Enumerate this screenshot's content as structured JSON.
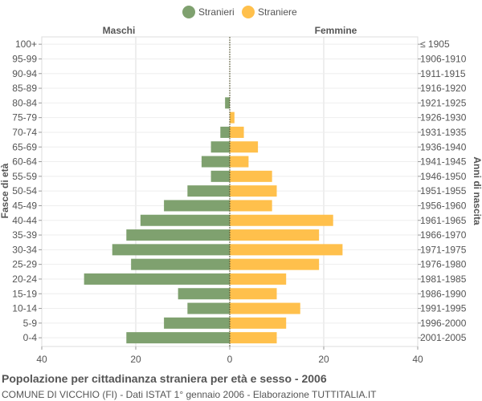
{
  "chart_data": {
    "type": "bar",
    "orientation": "horizontal-pyramid",
    "title": "Popolazione per cittadinanza straniera per età e sesso - 2006",
    "subtitle": "COMUNE DI VICCHIO (FI) - Dati ISTAT 1° gennaio 2006 - Elaborazione TUTTITALIA.IT",
    "left_header": "Maschi",
    "right_header": "Femmine",
    "ylabel_left": "Fasce di età",
    "ylabel_right": "Anni di nascita",
    "xlim": [
      -40,
      40
    ],
    "x_ticks": [
      -40,
      -20,
      0,
      20,
      40
    ],
    "x_tick_labels": [
      "40",
      "20",
      "0",
      "20",
      "40"
    ],
    "grid": true,
    "legend_position": "top-center",
    "categories": [
      "100+",
      "95-99",
      "90-94",
      "85-89",
      "80-84",
      "75-79",
      "70-74",
      "65-69",
      "60-64",
      "55-59",
      "50-54",
      "45-49",
      "40-44",
      "35-39",
      "30-34",
      "25-29",
      "20-24",
      "15-19",
      "10-14",
      "5-9",
      "0-4"
    ],
    "birth_years": [
      "≤ 1905",
      "1906-1910",
      "1911-1915",
      "1916-1920",
      "1921-1925",
      "1926-1930",
      "1931-1935",
      "1936-1940",
      "1941-1945",
      "1946-1950",
      "1951-1955",
      "1956-1960",
      "1961-1965",
      "1966-1970",
      "1971-1975",
      "1976-1980",
      "1981-1985",
      "1986-1990",
      "1991-1995",
      "1996-2000",
      "2001-2005"
    ],
    "series": [
      {
        "name": "Stranieri",
        "color": "#7fa16f",
        "side": "left",
        "values": [
          0,
          0,
          0,
          0,
          1,
          0,
          2,
          4,
          6,
          4,
          9,
          14,
          19,
          22,
          25,
          21,
          31,
          11,
          9,
          14,
          22
        ]
      },
      {
        "name": "Straniere",
        "color": "#ffc04c",
        "side": "right",
        "values": [
          0,
          0,
          0,
          0,
          0,
          1,
          3,
          6,
          4,
          9,
          10,
          9,
          22,
          19,
          24,
          19,
          12,
          10,
          15,
          12,
          10
        ]
      }
    ]
  }
}
